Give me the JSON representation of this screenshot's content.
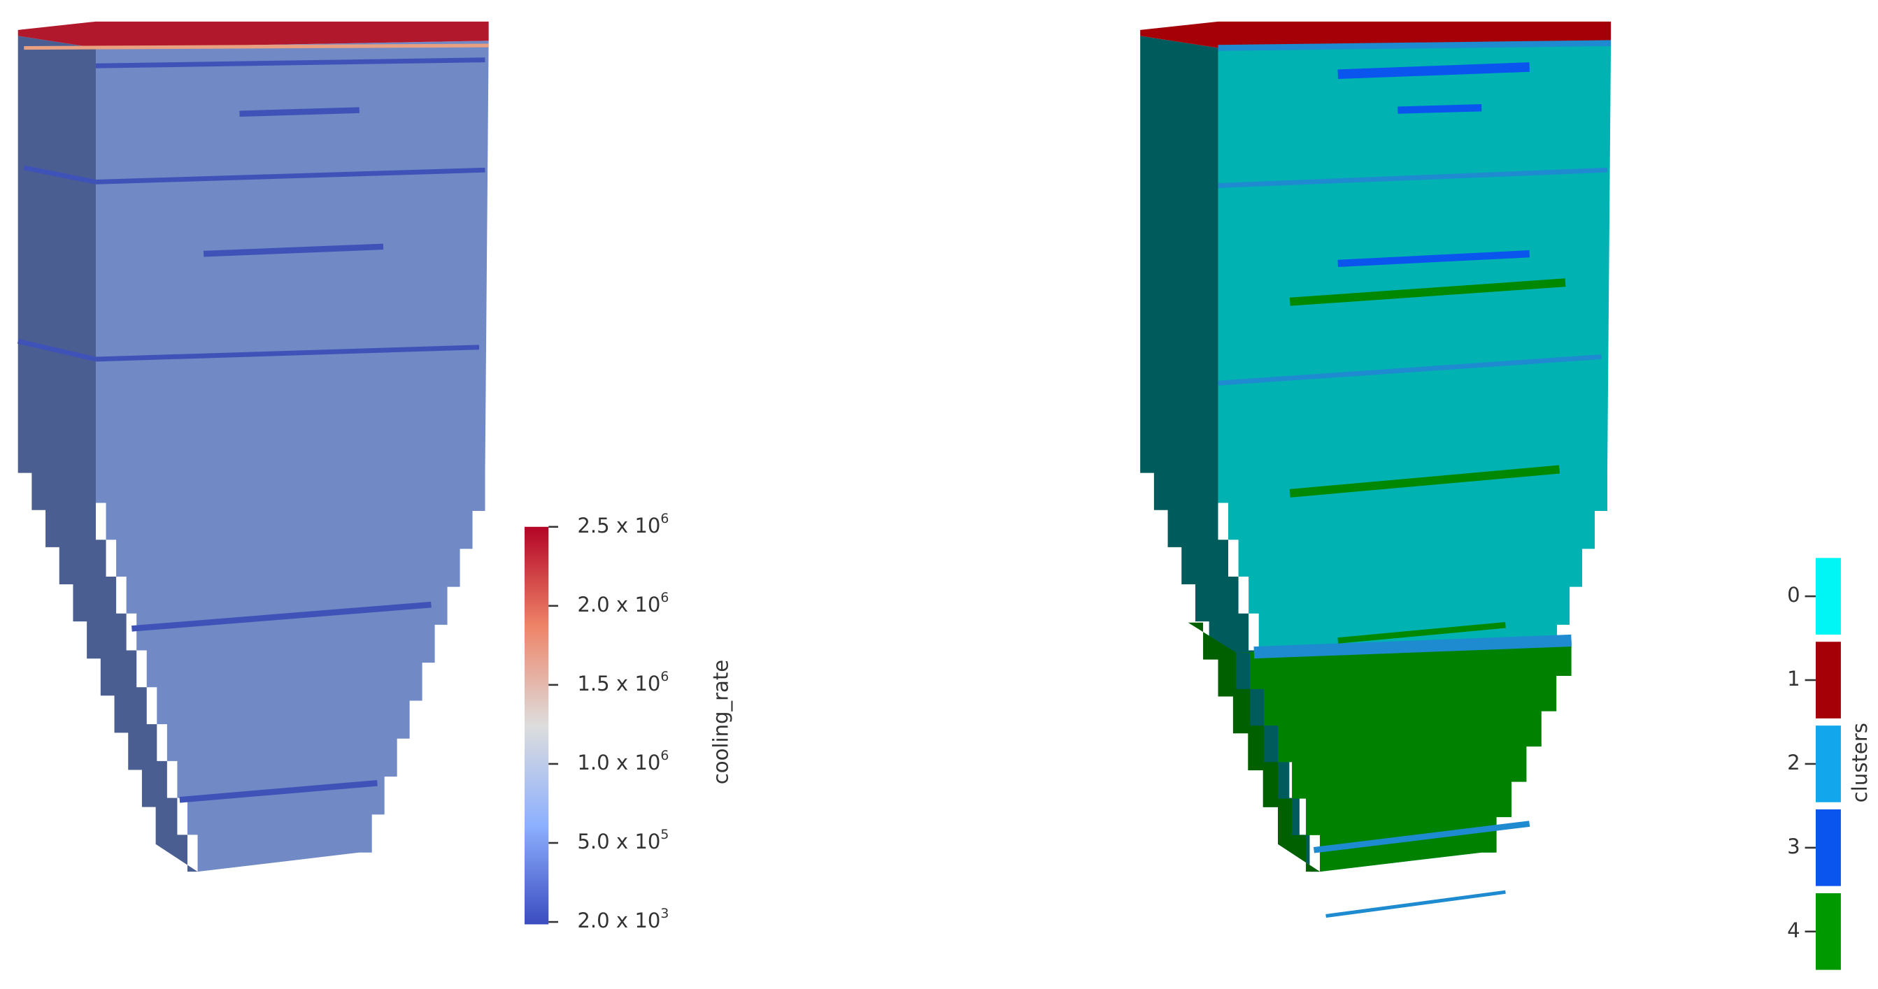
{
  "cooling_rate_view": {
    "colorbar": {
      "title": "cooling_rate",
      "ticks": [
        {
          "mantissa": "2.5 x 10",
          "exponent": "6"
        },
        {
          "mantissa": "2.0 x 10",
          "exponent": "6"
        },
        {
          "mantissa": "1.5 x 10",
          "exponent": "6"
        },
        {
          "mantissa": "1.0 x 10",
          "exponent": "6"
        },
        {
          "mantissa": "5.0 x 10",
          "exponent": "5"
        },
        {
          "mantissa": "2.0 x 10",
          "exponent": "3"
        }
      ]
    }
  },
  "clusters_view": {
    "legend": {
      "title": "clusters",
      "entries": [
        {
          "label": "0",
          "color": "#00f5f5"
        },
        {
          "label": "1",
          "color": "#a50008"
        },
        {
          "label": "2",
          "color": "#12a7ec"
        },
        {
          "label": "3",
          "color": "#0a55ee"
        },
        {
          "label": "4",
          "color": "#009a00"
        }
      ]
    }
  }
}
